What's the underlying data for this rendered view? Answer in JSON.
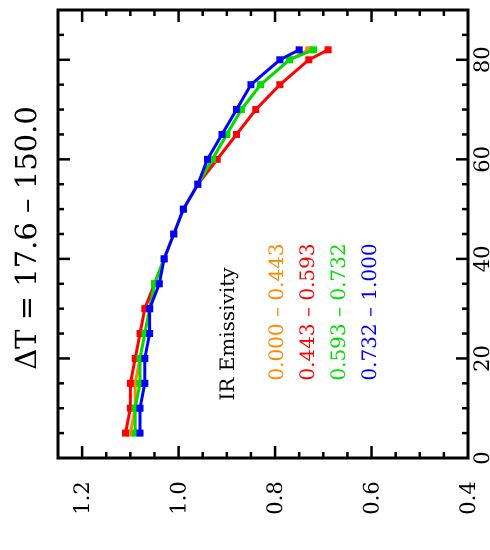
{
  "chart_data": {
    "type": "line",
    "orientation": "rotated-90-ccw",
    "title": "ΔT =  17.6  –  150.0",
    "x": [
      5,
      10,
      15,
      20,
      25,
      30,
      35,
      40,
      45,
      50,
      55,
      60,
      65,
      70,
      75,
      80,
      82
    ],
    "xlim": [
      0,
      90
    ],
    "xticks": [
      "0",
      "20",
      "40",
      "60",
      "80"
    ],
    "ylim": [
      0.4,
      1.25
    ],
    "yticks": [
      "0.4",
      "0.6",
      "0.8",
      "1.0",
      "1.2"
    ],
    "grid": false,
    "legend": {
      "title": "IR Emissivity",
      "placement": "inside, lower-center",
      "entries": [
        "0.000  –  0.443",
        "0.443  –  0.593",
        "0.593  –  0.732",
        "0.732  –  1.000"
      ]
    },
    "series": [
      {
        "name": "0.000  –  0.443",
        "color": "#ff8800",
        "values": [
          1.1,
          1.09,
          1.09,
          1.08,
          1.07,
          1.06,
          1.05,
          1.03,
          1.01,
          0.99,
          0.96,
          0.93,
          0.9,
          0.87,
          0.83,
          0.77,
          0.73
        ]
      },
      {
        "name": "0.443  –  0.593",
        "color": "#ff0000",
        "values": [
          1.11,
          1.1,
          1.1,
          1.09,
          1.08,
          1.07,
          1.05,
          1.03,
          1.01,
          0.99,
          0.96,
          0.92,
          0.88,
          0.84,
          0.79,
          0.73,
          0.69
        ]
      },
      {
        "name": "0.593  –  0.732",
        "color": "#00dd00",
        "values": [
          1.09,
          1.09,
          1.08,
          1.08,
          1.07,
          1.06,
          1.05,
          1.03,
          1.01,
          0.99,
          0.96,
          0.93,
          0.9,
          0.87,
          0.83,
          0.77,
          0.72
        ]
      },
      {
        "name": "0.732  –  1.000",
        "color": "#0000ff",
        "values": [
          1.08,
          1.08,
          1.07,
          1.07,
          1.06,
          1.06,
          1.04,
          1.03,
          1.01,
          0.99,
          0.96,
          0.94,
          0.91,
          0.88,
          0.85,
          0.79,
          0.75
        ]
      }
    ]
  }
}
